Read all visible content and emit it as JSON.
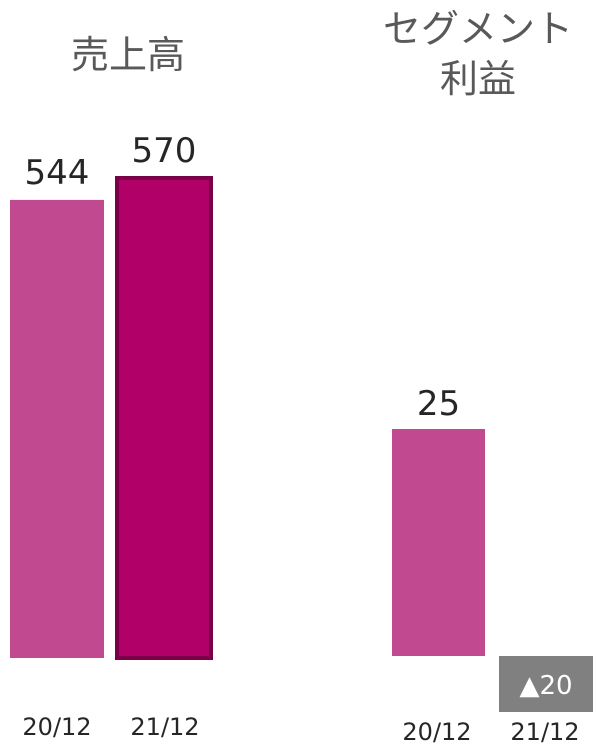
{
  "colors": {
    "prev": "#c0498f",
    "curr": "#b10068",
    "curr_border": "#7a0048",
    "negative_box": "#808080",
    "title": "#595959",
    "text": "#262626"
  },
  "chart_data": [
    {
      "type": "bar",
      "title": "売上高",
      "categories": [
        "20/12",
        "21/12"
      ],
      "values": [
        544,
        570
      ],
      "value_labels": [
        "544",
        "570"
      ],
      "ylim": [
        0,
        570
      ]
    },
    {
      "type": "bar",
      "title_lines": [
        "セグメント",
        "利益"
      ],
      "categories": [
        "20/12",
        "21/12"
      ],
      "values": [
        25,
        -20
      ],
      "value_labels": [
        "25",
        "▲20"
      ],
      "ylim": [
        0,
        25
      ]
    }
  ]
}
